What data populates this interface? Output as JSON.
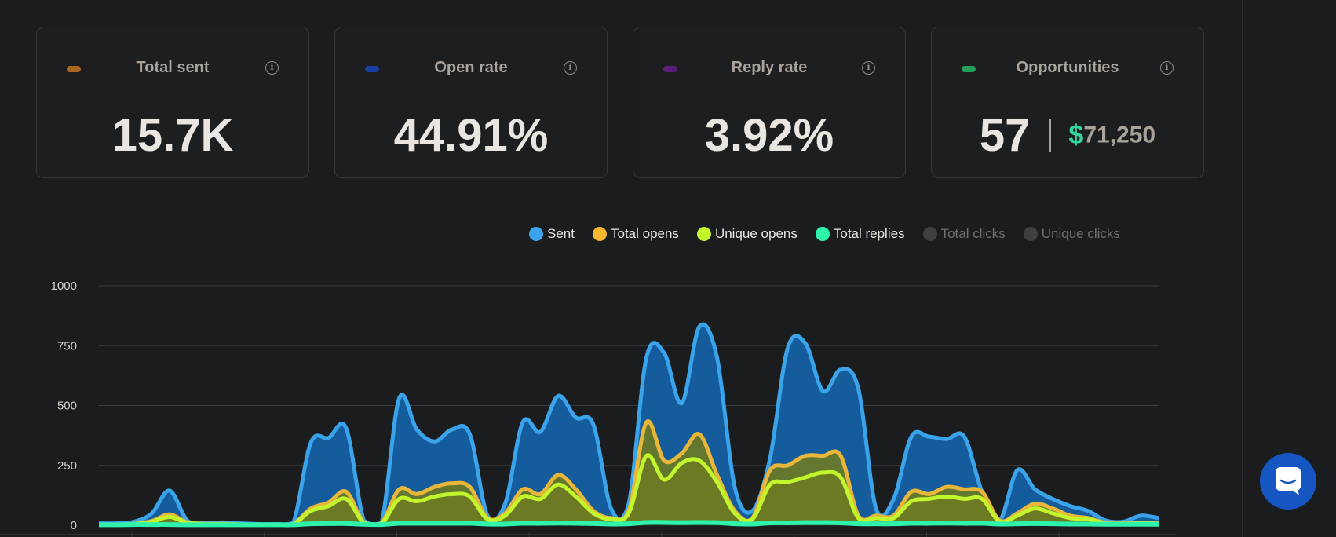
{
  "cards": [
    {
      "title": "Total sent",
      "value": "15.7K",
      "color": "#a8661e"
    },
    {
      "title": "Open rate",
      "value": "44.91%",
      "color": "#1b3fa0"
    },
    {
      "title": "Reply rate",
      "value": "3.92%",
      "color": "#5a1e7a"
    },
    {
      "title": "Opportunities",
      "count": "57",
      "currency": "$",
      "amount": "71,250",
      "color": "#21a05a"
    }
  ],
  "info_glyph": "i",
  "legend": [
    {
      "label": "Sent",
      "color": "#3aa3ea",
      "active": true
    },
    {
      "label": "Total opens",
      "color": "#f7b731",
      "active": true
    },
    {
      "label": "Unique opens",
      "color": "#c3f52c",
      "active": true
    },
    {
      "label": "Total replies",
      "color": "#2ff2ab",
      "active": true
    },
    {
      "label": "Total clicks",
      "color": "#3c4042",
      "active": false
    },
    {
      "label": "Unique clicks",
      "color": "#3c4042",
      "active": false
    }
  ],
  "chart_data": {
    "type": "area",
    "y_ticks": [
      "0",
      "250",
      "500",
      "750",
      "1000"
    ],
    "ylim": [
      0,
      1000
    ],
    "grid": true,
    "legend_position": "top-right",
    "series": [
      {
        "name": "Sent",
        "color": "#3aa3ea",
        "fill": "#1560a4",
        "values": [
          8,
          8,
          15,
          50,
          145,
          20,
          10,
          12,
          8,
          5,
          5,
          10,
          345,
          365,
          405,
          20,
          10,
          530,
          400,
          350,
          400,
          380,
          40,
          90,
          430,
          390,
          540,
          450,
          420,
          70,
          90,
          700,
          720,
          510,
          830,
          700,
          160,
          60,
          280,
          740,
          760,
          560,
          650,
          570,
          70,
          110,
          370,
          370,
          360,
          370,
          140,
          20,
          230,
          150,
          110,
          80,
          60,
          20,
          15,
          40,
          30
        ]
      },
      {
        "name": "Total opens",
        "color": "#e8b73a",
        "fill": "#6b7a22",
        "values": [
          2,
          3,
          6,
          18,
          45,
          12,
          6,
          6,
          4,
          2,
          2,
          5,
          70,
          95,
          140,
          12,
          8,
          150,
          130,
          160,
          175,
          160,
          30,
          50,
          150,
          130,
          210,
          150,
          60,
          30,
          60,
          430,
          270,
          300,
          380,
          210,
          60,
          30,
          230,
          250,
          290,
          290,
          290,
          40,
          40,
          40,
          140,
          130,
          160,
          150,
          140,
          20,
          50,
          90,
          70,
          40,
          30,
          10,
          8,
          10,
          8
        ]
      },
      {
        "name": "Unique opens",
        "color": "#c3f52c",
        "fill": "#6b7a22",
        "values": [
          2,
          2,
          5,
          14,
          35,
          10,
          5,
          5,
          3,
          2,
          2,
          4,
          60,
          80,
          110,
          10,
          7,
          110,
          100,
          120,
          130,
          120,
          25,
          40,
          120,
          110,
          170,
          120,
          50,
          25,
          50,
          290,
          190,
          260,
          270,
          180,
          50,
          25,
          170,
          180,
          200,
          220,
          200,
          30,
          30,
          30,
          100,
          110,
          120,
          110,
          110,
          15,
          40,
          70,
          50,
          30,
          25,
          8,
          6,
          8,
          6
        ]
      },
      {
        "name": "Total replies",
        "color": "#2ff2ab",
        "fill": "#1a6a4a",
        "values": [
          2,
          2,
          3,
          3,
          3,
          2,
          2,
          2,
          2,
          2,
          2,
          2,
          6,
          7,
          7,
          4,
          3,
          8,
          8,
          8,
          8,
          8,
          5,
          5,
          8,
          8,
          9,
          8,
          7,
          5,
          6,
          12,
          12,
          11,
          12,
          11,
          6,
          5,
          10,
          10,
          11,
          11,
          10,
          6,
          6,
          6,
          8,
          8,
          9,
          8,
          8,
          5,
          6,
          7,
          6,
          5,
          5,
          4,
          4,
          4,
          4
        ]
      }
    ]
  },
  "chat": {
    "icon": "chat-icon"
  }
}
